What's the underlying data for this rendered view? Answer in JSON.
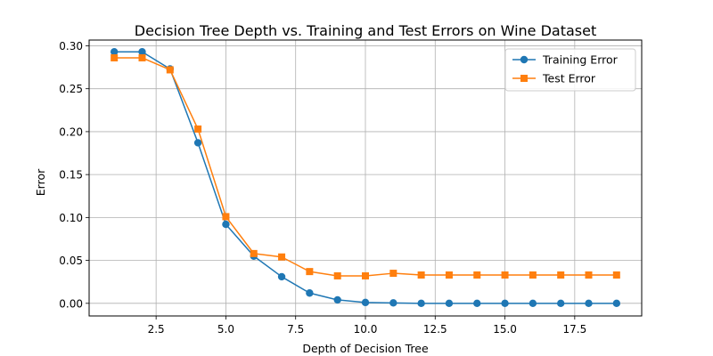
{
  "chart_data": {
    "type": "line",
    "title": "Decision Tree Depth vs. Training and Test Errors on Wine Dataset",
    "xlabel": "Depth of Decision Tree",
    "ylabel": "Error",
    "x": [
      1,
      2,
      3,
      4,
      5,
      6,
      7,
      8,
      9,
      10,
      11,
      12,
      13,
      14,
      15,
      16,
      17,
      18,
      19
    ],
    "xlim": [
      0.1,
      19.9
    ],
    "ylim": [
      -0.0147,
      0.3067
    ],
    "xticks": [
      2.5,
      5.0,
      7.5,
      10.0,
      12.5,
      15.0,
      17.5
    ],
    "xtick_labels": [
      "2.5",
      "5.0",
      "7.5",
      "10.0",
      "12.5",
      "15.0",
      "17.5"
    ],
    "yticks": [
      0.0,
      0.05,
      0.1,
      0.15,
      0.2,
      0.25,
      0.3
    ],
    "ytick_labels": [
      "0.00",
      "0.05",
      "0.10",
      "0.15",
      "0.20",
      "0.25",
      "0.30"
    ],
    "grid": true,
    "legend_position": "top-right",
    "series": [
      {
        "name": "Training Error",
        "color": "#1f77b4",
        "marker": "circle",
        "values": [
          0.293,
          0.293,
          0.273,
          0.187,
          0.092,
          0.055,
          0.031,
          0.012,
          0.004,
          0.001,
          0.0005,
          0.0,
          0.0,
          0.0,
          0.0,
          0.0,
          0.0,
          0.0,
          0.0
        ]
      },
      {
        "name": "Test Error",
        "color": "#ff7f0e",
        "marker": "square",
        "values": [
          0.286,
          0.286,
          0.272,
          0.203,
          0.101,
          0.058,
          0.054,
          0.037,
          0.032,
          0.032,
          0.035,
          0.033,
          0.033,
          0.033,
          0.033,
          0.033,
          0.033,
          0.033,
          0.033
        ]
      }
    ]
  }
}
